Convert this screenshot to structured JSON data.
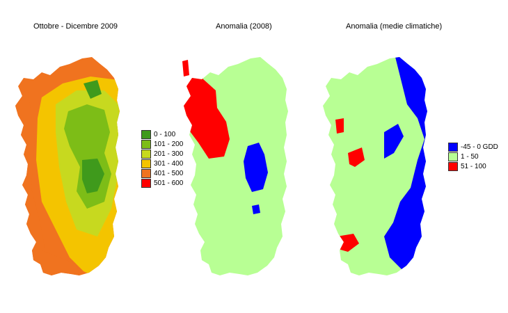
{
  "panels": [
    {
      "title": "Ottobre - Dicembre 2009"
    },
    {
      "title": "Anomalia (2008)"
    },
    {
      "title": "Anomalia (medie climatiche)"
    }
  ],
  "legend_gdd": {
    "items": [
      {
        "label": "0 - 100",
        "color": "#3f9a1c"
      },
      {
        "label": "101 - 200",
        "color": "#7dbd17"
      },
      {
        "label": "201 - 300",
        "color": "#c7d91f"
      },
      {
        "label": "301 - 400",
        "color": "#f4c400"
      },
      {
        "label": "401 - 500",
        "color": "#f0731f"
      },
      {
        "label": "501 - 600",
        "color": "#ff0000"
      }
    ]
  },
  "legend_anomaly": {
    "items": [
      {
        "label": "-45 - 0 GDD",
        "color": "#0000ff"
      },
      {
        "label": "1 - 50",
        "color": "#b8ff94"
      },
      {
        "label": "51 - 100",
        "color": "#ff0000"
      }
    ]
  }
}
